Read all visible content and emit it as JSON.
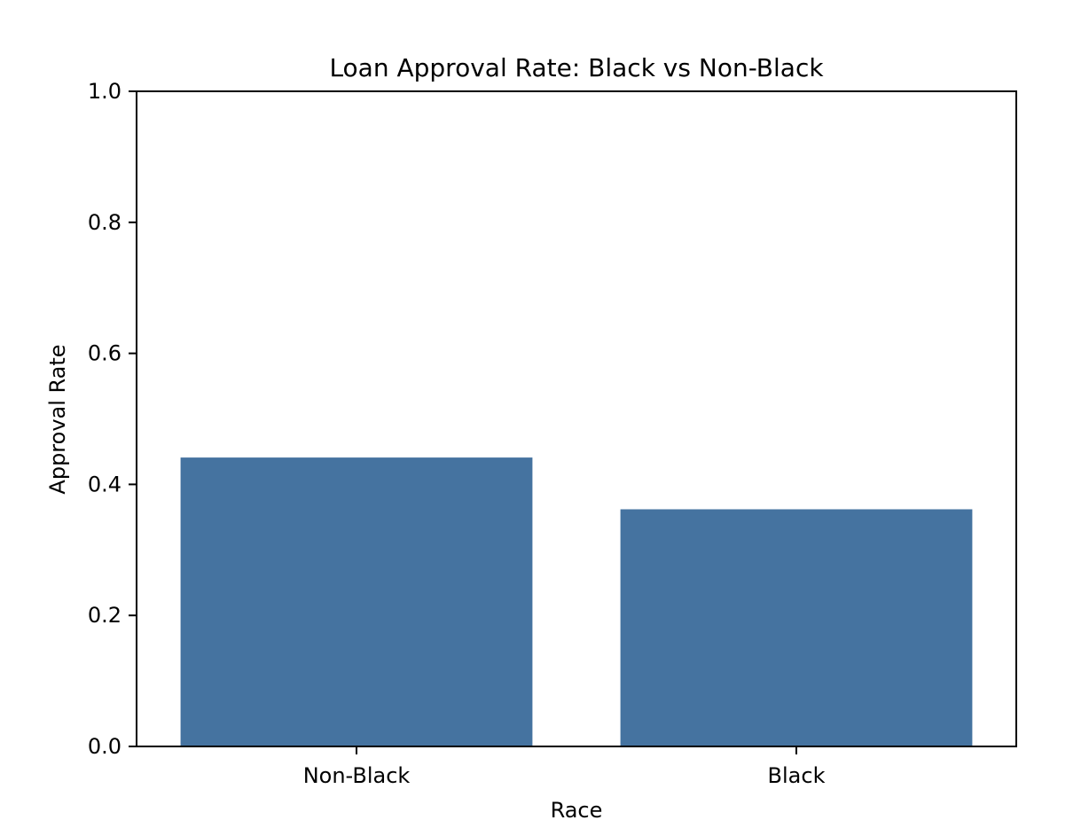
{
  "chart_data": {
    "type": "bar",
    "title": "Loan Approval Rate: Black vs Non-Black",
    "xlabel": "Race",
    "ylabel": "Approval Rate",
    "categories": [
      "Non-Black",
      "Black"
    ],
    "values": [
      0.441,
      0.362
    ],
    "ylim": [
      0,
      1
    ],
    "yticks": [
      "0.0",
      "0.2",
      "0.4",
      "0.6",
      "0.8",
      "1.0"
    ],
    "grid": false,
    "bar_color": "#4573a0"
  }
}
